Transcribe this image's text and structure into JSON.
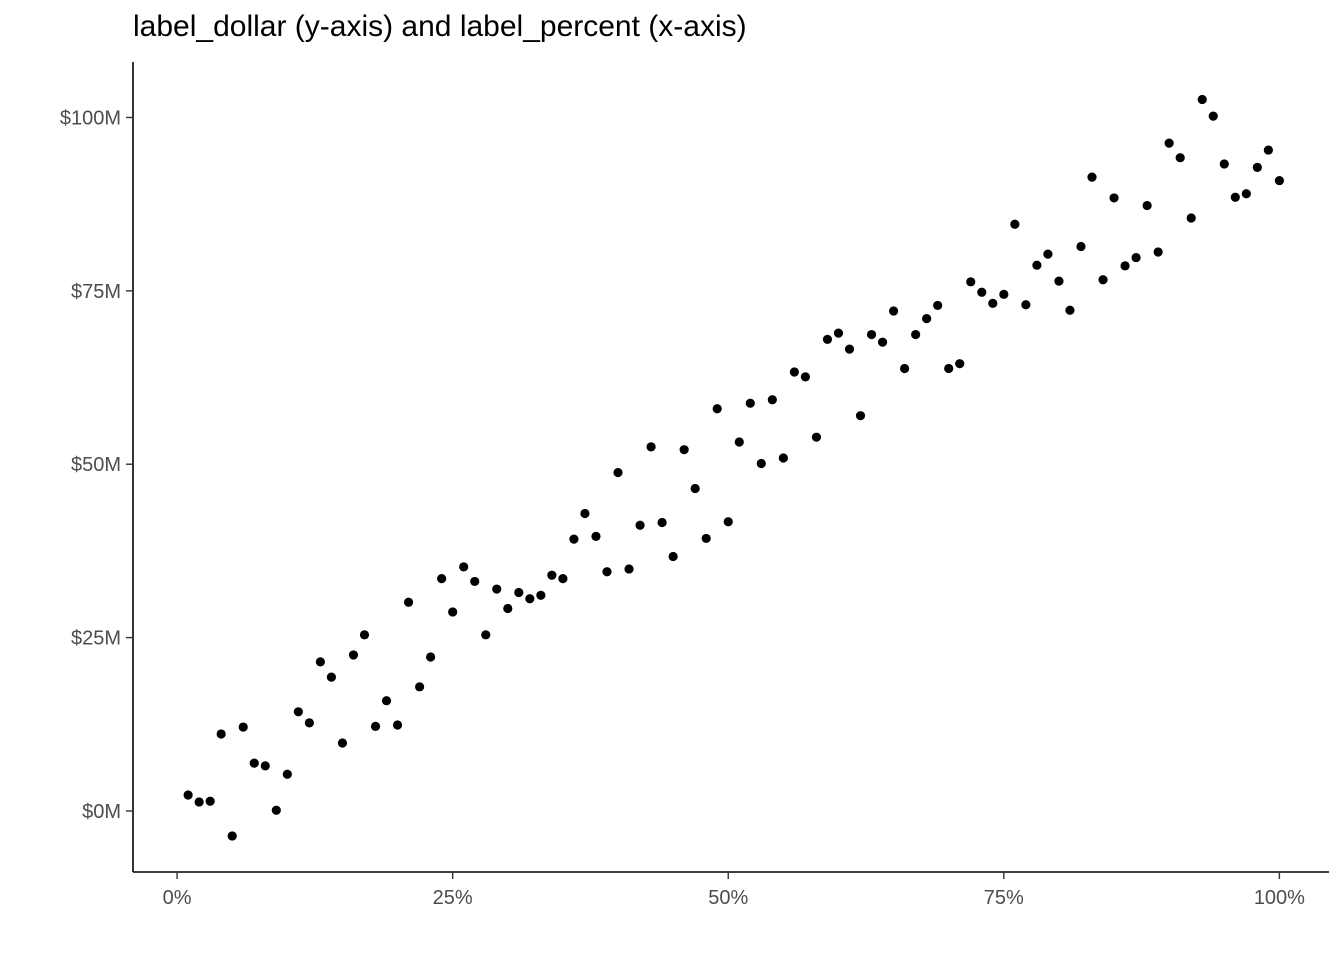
{
  "chart_data": {
    "type": "scatter",
    "title": "label_dollar (y-axis) and label_percent (x-axis)",
    "xlabel": "",
    "ylabel": "",
    "x_tick_values": [
      0,
      0.25,
      0.5,
      0.75,
      1.0
    ],
    "x_tick_labels": [
      "0%",
      "25%",
      "50%",
      "75%",
      "100%"
    ],
    "y_tick_values": [
      0,
      25,
      50,
      75,
      100
    ],
    "y_tick_labels": [
      "$0M",
      "$25M",
      "$50M",
      "$75M",
      "$100M"
    ],
    "y_unit": "millions of dollars",
    "xlim": [
      -0.04,
      1.045
    ],
    "ylim": [
      -8.8,
      108
    ],
    "grid": false,
    "legend": "none",
    "point_color": "#000000",
    "series": [
      {
        "x": [
          0.01,
          0.02,
          0.03,
          0.04,
          0.05,
          0.06,
          0.07,
          0.08,
          0.09,
          0.1,
          0.11,
          0.12,
          0.13,
          0.14,
          0.15,
          0.16,
          0.17,
          0.18,
          0.19,
          0.2,
          0.21,
          0.22,
          0.23,
          0.24,
          0.25,
          0.26,
          0.27,
          0.28,
          0.29,
          0.3,
          0.31,
          0.32,
          0.33,
          0.34,
          0.35,
          0.36,
          0.37,
          0.38,
          0.39,
          0.4,
          0.41,
          0.42,
          0.43,
          0.44,
          0.45,
          0.46,
          0.47,
          0.48,
          0.49,
          0.5,
          0.51,
          0.52,
          0.53,
          0.54,
          0.55,
          0.56,
          0.57,
          0.58,
          0.59,
          0.6,
          0.61,
          0.62,
          0.63,
          0.64,
          0.65,
          0.66,
          0.67,
          0.68,
          0.69,
          0.7,
          0.71,
          0.72,
          0.73,
          0.74,
          0.75,
          0.76,
          0.77,
          0.78,
          0.79,
          0.8,
          0.81,
          0.82,
          0.83,
          0.84,
          0.85,
          0.86,
          0.87,
          0.88,
          0.89,
          0.9,
          0.91,
          0.92,
          0.93,
          0.94,
          0.95,
          0.96,
          0.97,
          0.98,
          0.99,
          1.0
        ],
        "y": [
          2.3,
          1.3,
          1.4,
          11.1,
          -3.6,
          12.1,
          6.9,
          6.5,
          0.1,
          5.3,
          14.3,
          12.7,
          21.5,
          19.3,
          9.8,
          22.5,
          25.4,
          12.2,
          15.9,
          12.4,
          30.1,
          17.9,
          22.2,
          33.5,
          28.7,
          35.2,
          33.1,
          25.4,
          32.0,
          29.2,
          31.5,
          30.6,
          31.1,
          34.0,
          33.5,
          39.2,
          42.9,
          39.6,
          34.5,
          48.8,
          34.9,
          41.2,
          52.5,
          41.6,
          36.7,
          52.1,
          46.5,
          39.3,
          58.0,
          41.7,
          53.2,
          58.8,
          50.1,
          59.3,
          50.9,
          63.3,
          62.6,
          53.9,
          68.0,
          68.9,
          66.6,
          57.0,
          68.7,
          67.6,
          72.1,
          63.8,
          68.7,
          71.0,
          72.9,
          63.8,
          64.5,
          76.3,
          74.8,
          73.2,
          74.5,
          84.6,
          73.0,
          78.7,
          80.3,
          76.4,
          72.2,
          81.4,
          91.4,
          76.6,
          88.4,
          78.6,
          79.8,
          87.3,
          80.6,
          96.3,
          94.2,
          85.5,
          102.6,
          100.2,
          93.3,
          88.5,
          89.0,
          92.8,
          95.3,
          90.9
        ]
      }
    ]
  }
}
